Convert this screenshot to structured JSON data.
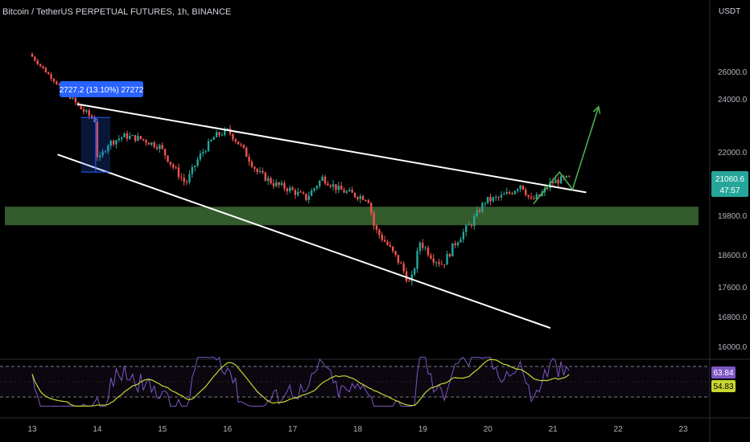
{
  "header": {
    "title": "Bitcoin / TetherUS PERPETUAL FUTURES, 1h, BINANCE",
    "unit": "USDT"
  },
  "chart_data": {
    "type": "candlestick",
    "title": "Bitcoin / TetherUS PERPETUAL FUTURES, 1h, BINANCE",
    "ylabel": "USDT",
    "ylim": [
      15600,
      27600
    ],
    "y_ticks": [
      "26000.0",
      "24000.0",
      "22000.0",
      "19800.0",
      "18600.0",
      "17600.0",
      "16800.0",
      "16000.0"
    ],
    "x_ticks": [
      "13",
      "14",
      "15",
      "16",
      "17",
      "18",
      "19",
      "20",
      "21",
      "22",
      "23"
    ],
    "price_path": [
      [
        "13.0",
        27300
      ],
      [
        "13.25",
        26000
      ],
      [
        "13.45",
        25000
      ],
      [
        "13.6",
        24200
      ],
      [
        "13.75",
        23700
      ],
      [
        "14.0",
        23200
      ],
      [
        "14.05",
        21600
      ],
      [
        "14.2",
        22300
      ],
      [
        "14.45",
        22600
      ],
      [
        "14.7",
        22500
      ],
      [
        "15.0",
        22200
      ],
      [
        "15.2",
        21500
      ],
      [
        "15.4",
        20900
      ],
      [
        "15.6",
        21800
      ],
      [
        "15.85",
        22600
      ],
      [
        "16.05",
        22800
      ],
      [
        "16.25",
        22200
      ],
      [
        "16.5",
        21300
      ],
      [
        "16.75",
        20900
      ],
      [
        "17.0",
        20700
      ],
      [
        "17.25",
        20400
      ],
      [
        "17.5",
        21100
      ],
      [
        "17.75",
        20700
      ],
      [
        "18.0",
        20500
      ],
      [
        "18.2",
        20400
      ],
      [
        "18.3",
        19400
      ],
      [
        "18.5",
        18900
      ],
      [
        "18.7",
        18300
      ],
      [
        "18.85",
        17650
      ],
      [
        "19.0",
        19000
      ],
      [
        "19.2",
        18500
      ],
      [
        "19.35",
        18300
      ],
      [
        "19.55",
        19000
      ],
      [
        "19.8",
        19600
      ],
      [
        "20.0",
        20300
      ],
      [
        "20.2",
        20400
      ],
      [
        "20.4",
        20600
      ],
      [
        "20.55",
        20900
      ],
      [
        "20.7",
        20300
      ],
      [
        "20.85",
        20500
      ],
      [
        "21.0",
        20900
      ],
      [
        "21.1",
        21000
      ],
      [
        "21.25",
        21060
      ]
    ],
    "annotations": {
      "measure_label": "2727.2 (13.10%) 27272",
      "resistance_line": [
        [
          "13.7",
          23800
        ],
        [
          "21.5",
          20600
        ]
      ],
      "support_line": [
        [
          "13.4",
          21900
        ],
        [
          "20.95",
          16500
        ]
      ],
      "support_zone": [
        19500,
        20100
      ],
      "projection": [
        [
          "20.7",
          20200
        ],
        [
          "21.1",
          21300
        ],
        [
          "21.3",
          20700
        ],
        [
          "21.7",
          23700
        ]
      ]
    },
    "price_label": "21060.6",
    "countdown_label": "47:57",
    "rsi": {
      "value_label": "63.84",
      "ma_label": "54.83"
    },
    "colors": {
      "up": "#26a69a",
      "down": "#ef5350",
      "zone": "#3d6b32",
      "measure": "#2962ff",
      "projection": "#4caf50",
      "rsi": "#7e57c2",
      "rsi_ma": "#c8d630",
      "price_tag": "#26a69a"
    }
  }
}
